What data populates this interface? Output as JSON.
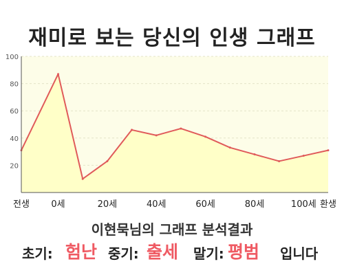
{
  "chart_data": {
    "type": "area",
    "title": "재미로 보는 당신의 인생 그래프",
    "subtitle": "이현묵님의 그래프 분석결과",
    "categories": [
      "전생",
      "0세",
      "20세",
      "40세",
      "60세",
      "80세",
      "100세",
      "환생"
    ],
    "x": [
      -15,
      0,
      10,
      20,
      30,
      40,
      50,
      60,
      70,
      80,
      90,
      100,
      110
    ],
    "y": [
      31,
      87,
      10,
      23,
      46,
      42,
      47,
      41,
      33,
      28,
      23,
      27,
      31
    ],
    "ylim": [
      0,
      100
    ],
    "yticks": [
      20,
      40,
      60,
      80,
      100
    ],
    "xticks": [
      -15,
      0,
      20,
      40,
      60,
      80,
      100,
      110
    ],
    "grid": true,
    "colors": {
      "line": "#e05a5a",
      "fill": "#ffffc8",
      "plot_bg": "#fdfde8",
      "highlight": "#ef5a63"
    }
  },
  "result": {
    "early_label": "초기:",
    "early_value": "험난",
    "mid_label": "중기:",
    "mid_value": "출세",
    "late_label": "말기:",
    "late_value": "평범",
    "suffix": "입니다"
  }
}
